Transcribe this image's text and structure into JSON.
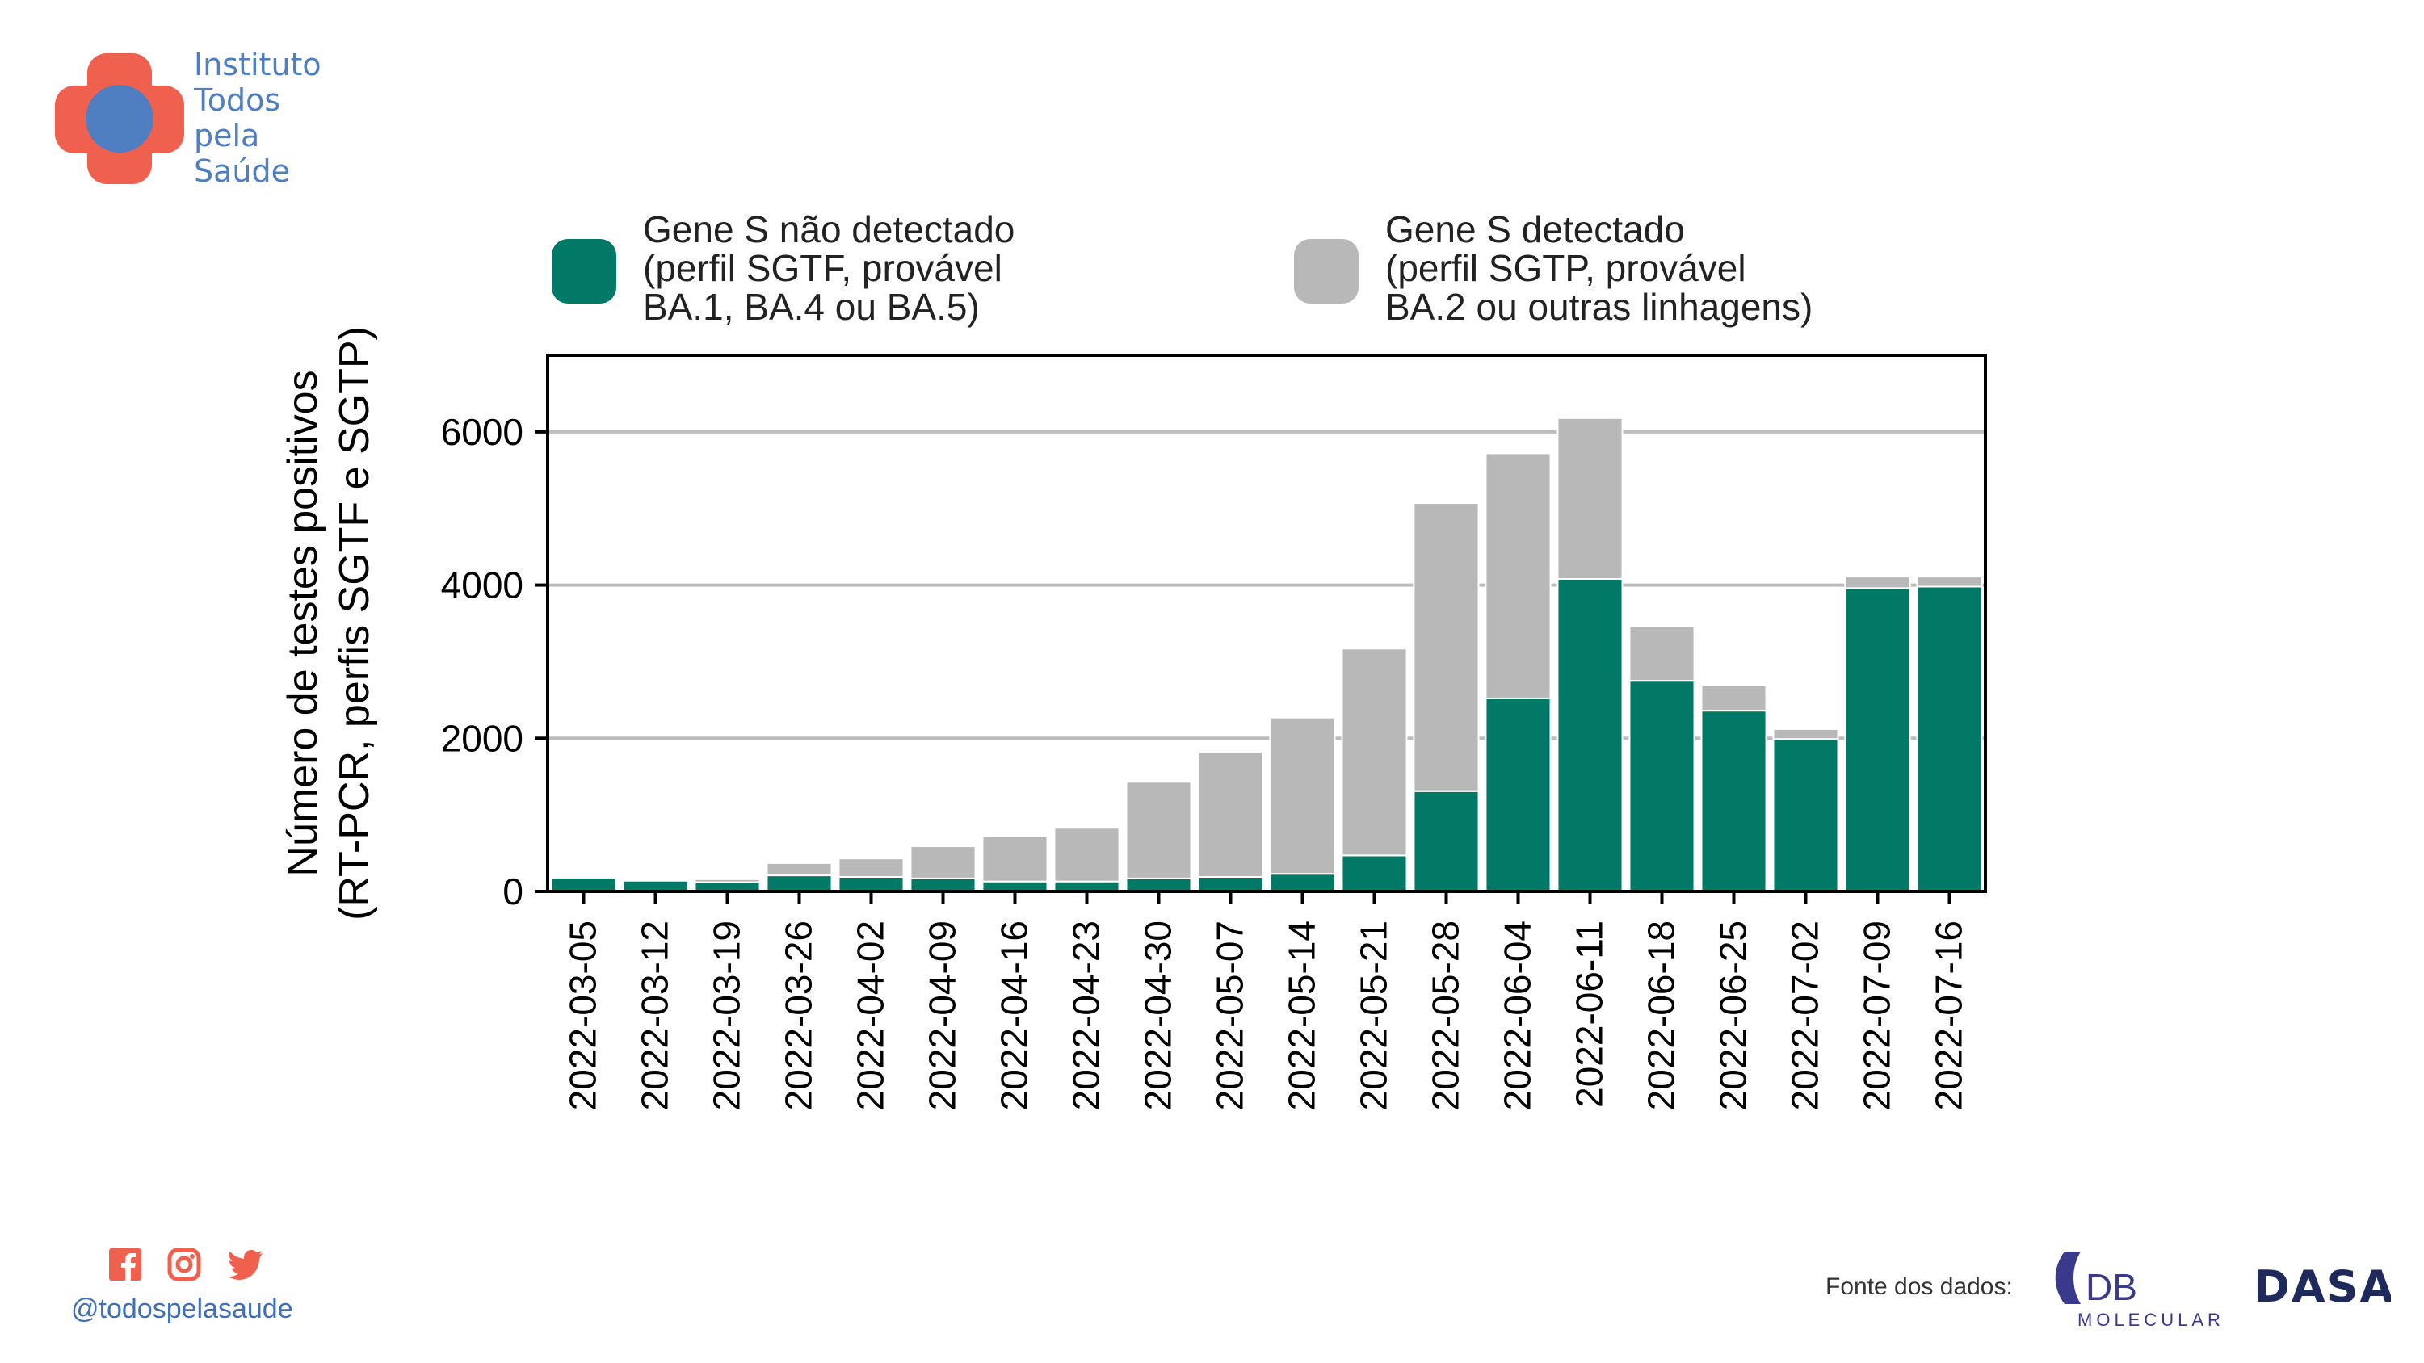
{
  "brand": {
    "name_lines": [
      "Instituto",
      "Todos",
      "pela",
      "Saúde"
    ],
    "handle": "@todospelasaude"
  },
  "social_icons": [
    "facebook-icon",
    "instagram-icon",
    "twitter-icon"
  ],
  "source": {
    "label": "Fonte dos dados:",
    "db_logo_text": "DB",
    "db_logo_subtext": "MOLECULAR",
    "dasa_logo_text": "DASA"
  },
  "colors": {
    "sgtf": "#007a66",
    "sgtp": "#b8b8b8",
    "brand_red": "#f0604f",
    "brand_blue": "#4f7fc1"
  },
  "chart_data": {
    "type": "bar",
    "stacked": true,
    "ylabel_lines": [
      "Número de testes positivos",
      "(RT-PCR, perfis SGTF e SGTP)"
    ],
    "xlabel": "",
    "ylim": [
      0,
      7000
    ],
    "yticks": [
      0,
      2000,
      4000,
      6000
    ],
    "grid": "y",
    "legend": "top",
    "categories": [
      "2022-03-05",
      "2022-03-12",
      "2022-03-19",
      "2022-03-26",
      "2022-04-02",
      "2022-04-09",
      "2022-04-16",
      "2022-04-23",
      "2022-04-30",
      "2022-05-07",
      "2022-05-14",
      "2022-05-21",
      "2022-05-28",
      "2022-06-04",
      "2022-06-11",
      "2022-06-18",
      "2022-06-25",
      "2022-07-02",
      "2022-07-09",
      "2022-07-16"
    ],
    "series": [
      {
        "name_lines": [
          "Gene S não detectado",
          "(perfil SGTF, provável",
          "BA.1, BA.4 ou BA.5)"
        ],
        "color": "#007a66",
        "values": [
          180,
          140,
          120,
          210,
          190,
          170,
          130,
          130,
          170,
          190,
          230,
          470,
          1310,
          2520,
          4080,
          2750,
          2360,
          1990,
          3960,
          3980
        ]
      },
      {
        "name_lines": [
          "Gene S detectado",
          "(perfil SGTP, provável",
          "BA.2 ou outras linhagens)"
        ],
        "color": "#b8b8b8",
        "values": [
          0,
          0,
          40,
          160,
          240,
          420,
          590,
          700,
          1260,
          1630,
          2040,
          2700,
          3760,
          3200,
          2100,
          710,
          330,
          130,
          150,
          130
        ]
      }
    ]
  }
}
